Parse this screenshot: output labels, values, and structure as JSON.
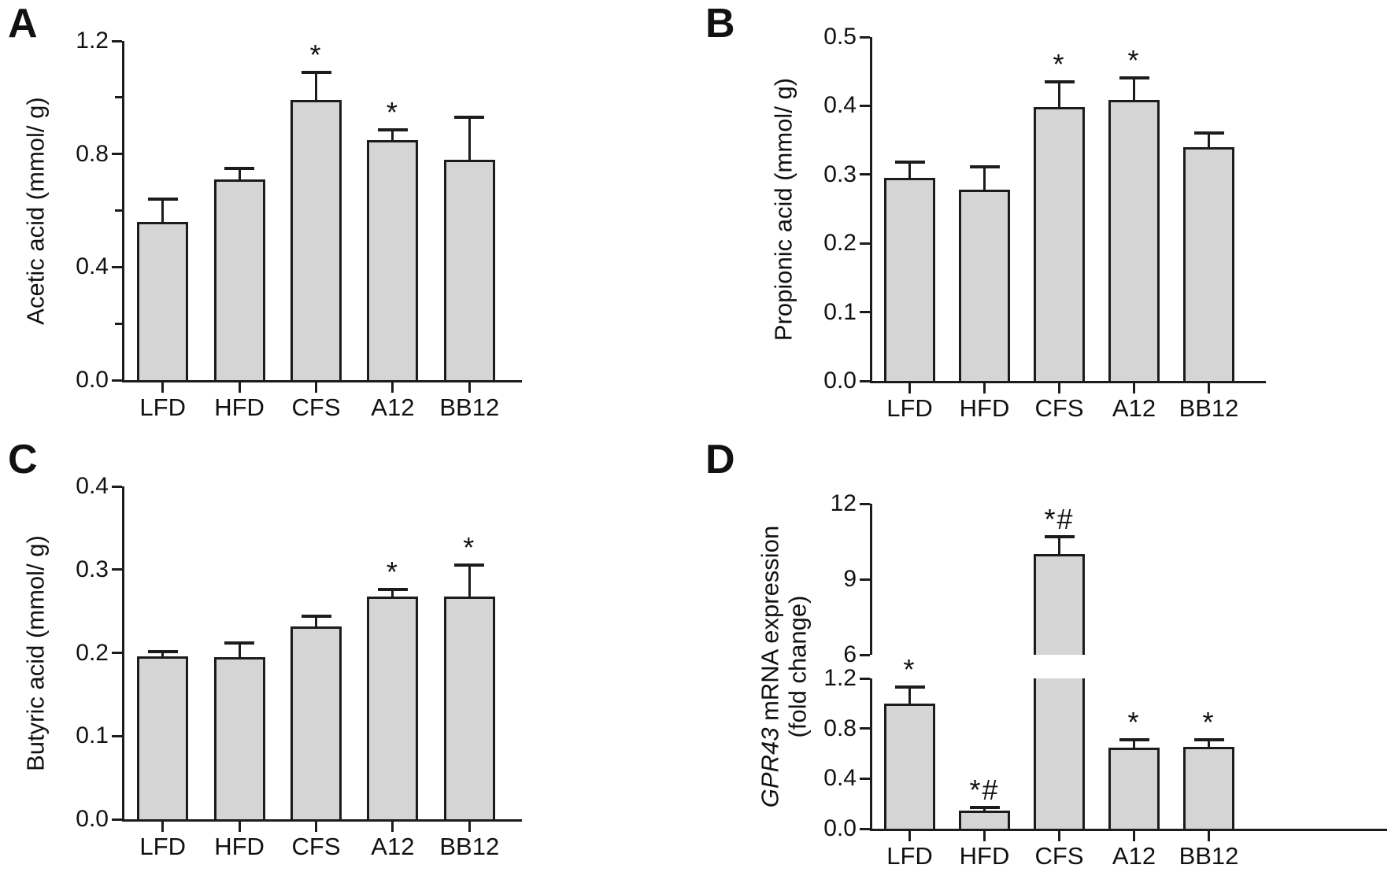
{
  "figure": {
    "colors": {
      "background": "#ffffff",
      "bar_fill": "#d5d5d5",
      "line": "#1c1c1c",
      "text": "#111111"
    }
  },
  "chart_data": [
    {
      "type": "bar",
      "panel_label": "A",
      "title": "",
      "xlabel": "",
      "ylabel": "Acetic acid (mmol/ g)",
      "ylabel_lines": [
        [
          {
            "t": "Acetic acid (mmol/ g)",
            "i": false
          }
        ]
      ],
      "categories": [
        "LFD",
        "HFD",
        "CFS",
        "A12",
        "BB12"
      ],
      "values": [
        0.56,
        0.71,
        0.99,
        0.85,
        0.78
      ],
      "errors": [
        0.08,
        0.04,
        0.1,
        0.035,
        0.15
      ],
      "significance": [
        "",
        "",
        "*",
        "*",
        ""
      ],
      "legend": null,
      "grid": false,
      "axis": {
        "ylim": [
          0,
          1.2
        ],
        "gap_frac": 0,
        "segments": [
          {
            "min": 0,
            "max": 1.2,
            "frac": 1,
            "ticks": [
              {
                "v": 0,
                "label": "0.0"
              },
              {
                "v": 0.4,
                "label": "0.4"
              },
              {
                "v": 0.8,
                "label": "0.8"
              },
              {
                "v": 1.2,
                "label": "1.2"
              }
            ],
            "minor": [
              0.2,
              0.6,
              1.0
            ]
          }
        ]
      }
    },
    {
      "type": "bar",
      "panel_label": "B",
      "title": "",
      "xlabel": "",
      "ylabel": "Propionic acid (mmol/ g)",
      "ylabel_lines": [
        [
          {
            "t": "Propionic acid (mmol/ g)",
            "i": false
          }
        ]
      ],
      "categories": [
        "LFD",
        "HFD",
        "CFS",
        "A12",
        "BB12"
      ],
      "values": [
        0.295,
        0.278,
        0.398,
        0.408,
        0.34
      ],
      "errors": [
        0.023,
        0.033,
        0.037,
        0.032,
        0.02
      ],
      "significance": [
        "",
        "",
        "*",
        "*",
        ""
      ],
      "legend": null,
      "grid": false,
      "axis": {
        "ylim": [
          0,
          0.5
        ],
        "gap_frac": 0,
        "segments": [
          {
            "min": 0,
            "max": 0.5,
            "frac": 1,
            "ticks": [
              {
                "v": 0,
                "label": "0.0"
              },
              {
                "v": 0.1,
                "label": "0.1"
              },
              {
                "v": 0.2,
                "label": "0.2"
              },
              {
                "v": 0.3,
                "label": "0.3"
              },
              {
                "v": 0.4,
                "label": "0.4"
              },
              {
                "v": 0.5,
                "label": "0.5"
              }
            ],
            "minor": []
          }
        ]
      }
    },
    {
      "type": "bar",
      "panel_label": "C",
      "title": "",
      "xlabel": "",
      "ylabel": "Butyric acid (mmol/ g)",
      "ylabel_lines": [
        [
          {
            "t": "Butyric acid (mmol/ g)",
            "i": false
          }
        ]
      ],
      "categories": [
        "LFD",
        "HFD",
        "CFS",
        "A12",
        "BB12"
      ],
      "values": [
        0.196,
        0.195,
        0.232,
        0.268,
        0.268
      ],
      "errors": [
        0.005,
        0.017,
        0.012,
        0.008,
        0.037
      ],
      "significance": [
        "",
        "",
        "",
        "*",
        "*"
      ],
      "legend": null,
      "grid": false,
      "axis": {
        "ylim": [
          0,
          0.4
        ],
        "gap_frac": 0,
        "segments": [
          {
            "min": 0,
            "max": 0.4,
            "frac": 1,
            "ticks": [
              {
                "v": 0,
                "label": "0.0"
              },
              {
                "v": 0.1,
                "label": "0.1"
              },
              {
                "v": 0.2,
                "label": "0.2"
              },
              {
                "v": 0.3,
                "label": "0.3"
              },
              {
                "v": 0.4,
                "label": "0.4"
              }
            ],
            "minor": []
          }
        ]
      }
    },
    {
      "type": "bar",
      "panel_label": "D",
      "title": "",
      "xlabel": "",
      "ylabel": "GPR43 mRNA expression (fold change)",
      "ylabel_lines": [
        [
          {
            "t": "GPR43",
            "i": true
          },
          {
            "t": " mRNA expression",
            "i": false
          }
        ],
        [
          {
            "t": "(fold change)",
            "i": false
          }
        ]
      ],
      "categories": [
        "LFD",
        "HFD",
        "CFS",
        "A12",
        "BB12"
      ],
      "values": [
        1.0,
        0.145,
        10.0,
        0.645,
        0.655
      ],
      "errors": [
        0.13,
        0.025,
        0.7,
        0.065,
        0.055
      ],
      "significance": [
        "*",
        "*#",
        "*#",
        "*",
        "*"
      ],
      "legend": null,
      "grid": false,
      "axis_break": {
        "between": [
          1.2,
          6
        ]
      },
      "axis": {
        "ylim": [
          0,
          12
        ],
        "gap_frac": 0.0725,
        "segments": [
          {
            "min": 0,
            "max": 1.2,
            "frac": 0.4625,
            "ticks": [
              {
                "v": 0,
                "label": "0.0"
              },
              {
                "v": 0.4,
                "label": "0.4"
              },
              {
                "v": 0.8,
                "label": "0.8"
              },
              {
                "v": 1.2,
                "label": "1.2"
              }
            ],
            "minor": []
          },
          {
            "min": 6,
            "max": 12,
            "frac": 0.465,
            "ticks": [
              {
                "v": 6,
                "label": "6"
              },
              {
                "v": 9,
                "label": "9"
              },
              {
                "v": 12,
                "label": "12"
              }
            ],
            "minor": []
          }
        ]
      }
    }
  ]
}
